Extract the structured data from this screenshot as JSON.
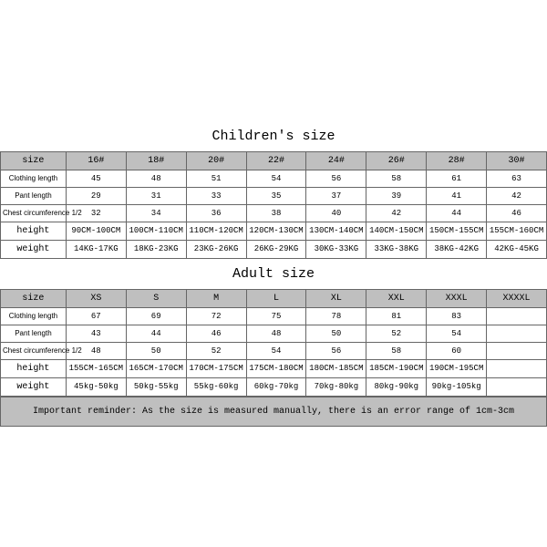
{
  "children_title": "Children's size",
  "adult_title": "Adult size",
  "reminder_text": "Important reminder: As the size is measured manually, there is an error range of 1cm-3cm",
  "children": {
    "labels": [
      "size",
      "Clothing length",
      "Pant length",
      "Chest circumference 1/2",
      "height",
      "weight"
    ],
    "sizes": [
      "16#",
      "18#",
      "20#",
      "22#",
      "24#",
      "26#",
      "28#",
      "30#"
    ],
    "clothing_length": [
      "45",
      "48",
      "51",
      "54",
      "56",
      "58",
      "61",
      "63"
    ],
    "pant_length": [
      "29",
      "31",
      "33",
      "35",
      "37",
      "39",
      "41",
      "42"
    ],
    "chest": [
      "32",
      "34",
      "36",
      "38",
      "40",
      "42",
      "44",
      "46"
    ],
    "height": [
      "90CM-100CM",
      "100CM-110CM",
      "110CM-120CM",
      "120CM-130CM",
      "130CM-140CM",
      "140CM-150CM",
      "150CM-155CM",
      "155CM-160CM"
    ],
    "weight": [
      "14KG-17KG",
      "18KG-23KG",
      "23KG-26KG",
      "26KG-29KG",
      "30KG-33KG",
      "33KG-38KG",
      "38KG-42KG",
      "42KG-45KG"
    ]
  },
  "adult": {
    "labels": [
      "size",
      "Clothing length",
      "Pant length",
      "Chest circumference 1/2",
      "height",
      "weight"
    ],
    "sizes": [
      "XS",
      "S",
      "M",
      "L",
      "XL",
      "XXL",
      "XXXL",
      "XXXXL"
    ],
    "clothing_length": [
      "67",
      "69",
      "72",
      "75",
      "78",
      "81",
      "83",
      ""
    ],
    "pant_length": [
      "43",
      "44",
      "46",
      "48",
      "50",
      "52",
      "54",
      ""
    ],
    "chest": [
      "48",
      "50",
      "52",
      "54",
      "56",
      "58",
      "60",
      ""
    ],
    "height": [
      "155CM-165CM",
      "165CM-170CM",
      "170CM-175CM",
      "175CM-180CM",
      "180CM-185CM",
      "185CM-190CM",
      "190CM-195CM",
      ""
    ],
    "weight": [
      "45kg-50kg",
      "50kg-55kg",
      "55kg-60kg",
      "60kg-70kg",
      "70kg-80kg",
      "80kg-90kg",
      "90kg-105kg",
      ""
    ]
  },
  "style": {
    "header_bg": "#bfbfbf",
    "border_color": "#666666",
    "text_color": "#000000",
    "title_fontsize": 15,
    "data_fontsize": 9
  }
}
